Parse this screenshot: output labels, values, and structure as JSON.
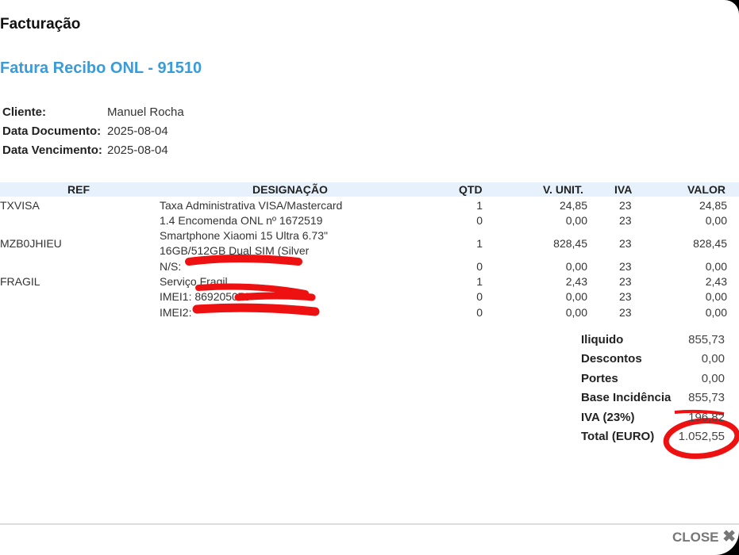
{
  "window": {
    "title": "Facturação"
  },
  "document": {
    "title": "Fatura Recibo ONL - 91510"
  },
  "info": [
    {
      "label": "Cliente:",
      "value": "Manuel Rocha"
    },
    {
      "label": "Data Documento:",
      "value": "2025-08-04"
    },
    {
      "label": "Data Vencimento:",
      "value": "2025-08-04"
    }
  ],
  "table": {
    "headers": {
      "ref": "REF",
      "designacao": "DESIGNAÇÃO",
      "qtd": "QTD",
      "vunit": "V. UNIT.",
      "iva": "IVA",
      "valor": "VALOR"
    },
    "rows": [
      {
        "ref": "TXVISA",
        "designacao": "Taxa Administrativa VISA/Mastercard",
        "qtd": "1",
        "vunit": "24,85",
        "iva": "23",
        "valor": "24,85"
      },
      {
        "ref": "",
        "designacao": "1.4 Encomenda ONL nº 1672519",
        "qtd": "0",
        "vunit": "0,00",
        "iva": "23",
        "valor": "0,00"
      },
      {
        "ref": "MZB0JHIEU",
        "designacao": "Smartphone Xiaomi 15 Ultra 6.73\"",
        "designacao2": "16GB/512GB Dual SIM (Silver",
        "qtd": "1",
        "vunit": "828,45",
        "iva": "23",
        "valor": "828,45"
      },
      {
        "ref": "",
        "designacao": "N/S:",
        "qtd": "0",
        "vunit": "0,00",
        "iva": "23",
        "valor": "0,00"
      },
      {
        "ref": "FRAGIL",
        "designacao": "Serviço Fragil",
        "qtd": "1",
        "vunit": "2,43",
        "iva": "23",
        "valor": "2,43"
      },
      {
        "ref": "",
        "designacao": "IMEI1: 869205073",
        "qtd": "0",
        "vunit": "0,00",
        "iva": "23",
        "valor": "0,00"
      },
      {
        "ref": "",
        "designacao": "IMEI2:",
        "qtd": "0",
        "vunit": "0,00",
        "iva": "23",
        "valor": "0,00"
      }
    ]
  },
  "totals": [
    {
      "label": "Iliquido",
      "value": "855,73"
    },
    {
      "label": "Descontos",
      "value": "0,00"
    },
    {
      "label": "Portes",
      "value": "0,00"
    },
    {
      "label": "Base Incidência",
      "value": "855,73"
    },
    {
      "label": "IVA (23%)",
      "value": "196,82"
    },
    {
      "label": "Total (EURO)",
      "value": "1.052,55"
    }
  ],
  "footer": {
    "close_label": "CLOSE",
    "close_icon": "close-x-icon"
  },
  "colors": {
    "title": "#3a9bd9",
    "header_bg": "#e6f1fb",
    "annotation": "#ee0000"
  }
}
